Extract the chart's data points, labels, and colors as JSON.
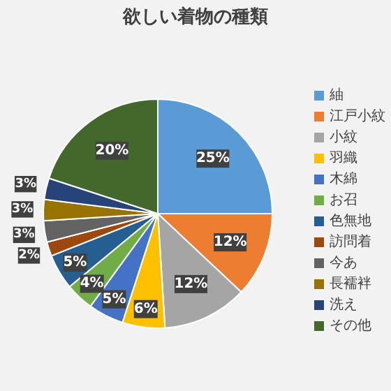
{
  "chart_data": {
    "type": "pie",
    "title": "欲しい着物の種類",
    "categories": [
      "紬",
      "江戸小紋",
      "小紋",
      "羽織",
      "木綿",
      "お召",
      "色無地",
      "訪問着",
      "今あ",
      "長襦袢",
      "洗え",
      "その他"
    ],
    "values": [
      25,
      12,
      12,
      6,
      5,
      4,
      5,
      2,
      3,
      3,
      3,
      20
    ],
    "value_labels": [
      "25%",
      "12%",
      "12%",
      "6%",
      "5%",
      "4%",
      "5%",
      "2%",
      "3%",
      "3%",
      "3%",
      "20%"
    ],
    "colors": [
      "#5b9bd5",
      "#ed7d31",
      "#a5a5a5",
      "#ffc000",
      "#4472c4",
      "#70ad47",
      "#255e91",
      "#9e480e",
      "#636363",
      "#997300",
      "#264478",
      "#43682b"
    ],
    "legend": "right"
  }
}
